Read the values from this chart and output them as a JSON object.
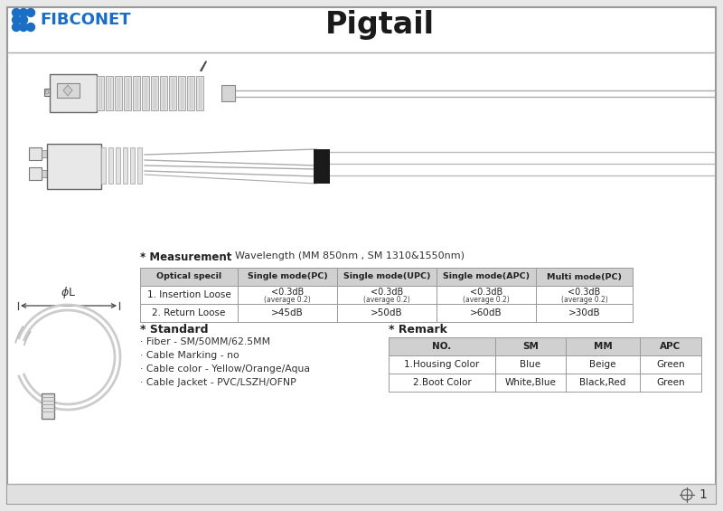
{
  "title": "Pigtail",
  "brand": "FIBCONET",
  "bg_color": "#e8e8e8",
  "blue_color": "#1a6fc4",
  "measurement_title": "* Measurement",
  "measurement_subtitle": "Wavelength (MM 850nm , SM 1310&1550nm)",
  "table_headers": [
    "Optical specil",
    "Single mode(PC)",
    "Single mode(UPC)",
    "Single mode(APC)",
    "Multi mode(PC)"
  ],
  "table_row1_main": [
    "1. Insertion Loose",
    "<0.3dB",
    "<0.3dB",
    "<0.3dB",
    "<0.3dB"
  ],
  "table_row1_sub": [
    "",
    "(average 0.2)",
    "(average 0.2)",
    "(average 0.2)",
    "(average 0.2)"
  ],
  "table_row2": [
    "2. Return Loose",
    ">45dB",
    ">50dB",
    ">60dB",
    ">30dB"
  ],
  "standard_title": "* Standard",
  "standard_items": [
    "· Fiber - SM/50MM/62.5MM",
    "· Cable Marking - no",
    "· Cable color - Yellow/Orange/Aqua",
    "· Cable Jacket - PVC/LSZH/OFNP"
  ],
  "remark_title": "* Remark",
  "remark_headers": [
    "NO.",
    "SM",
    "MM",
    "APC"
  ],
  "remark_row1": [
    "1.Housing Color",
    "Blue",
    "Beige",
    "Green"
  ],
  "remark_row2": [
    "2.Boot Color",
    "White,Blue",
    "Black,Red",
    "Green"
  ],
  "page_number": "1",
  "table_header_bg": "#d0d0d0",
  "content_bg": "#ffffff"
}
